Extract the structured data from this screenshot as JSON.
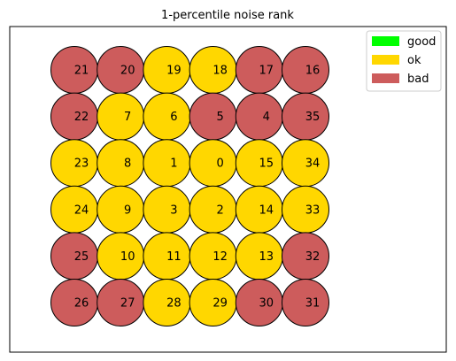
{
  "chart_data": {
    "type": "scatter",
    "title": "1-percentile noise rank",
    "grid": false,
    "axes_visible": false,
    "legend_position": "top-right",
    "colors": {
      "good": "#00ff00",
      "ok": "#ffd700",
      "bad": "#cd5c5c",
      "edge": "#000000"
    },
    "legend": [
      {
        "key": "good",
        "label": "good"
      },
      {
        "key": "ok",
        "label": "ok"
      },
      {
        "key": "bad",
        "label": "bad"
      }
    ],
    "grid_layout": {
      "rows": 6,
      "cols": 6
    },
    "points": [
      {
        "label": "21",
        "row": 0,
        "col": 0,
        "status": "bad"
      },
      {
        "label": "20",
        "row": 0,
        "col": 1,
        "status": "bad"
      },
      {
        "label": "19",
        "row": 0,
        "col": 2,
        "status": "ok"
      },
      {
        "label": "18",
        "row": 0,
        "col": 3,
        "status": "ok"
      },
      {
        "label": "17",
        "row": 0,
        "col": 4,
        "status": "bad"
      },
      {
        "label": "16",
        "row": 0,
        "col": 5,
        "status": "bad"
      },
      {
        "label": "22",
        "row": 1,
        "col": 0,
        "status": "bad"
      },
      {
        "label": "7",
        "row": 1,
        "col": 1,
        "status": "ok"
      },
      {
        "label": "6",
        "row": 1,
        "col": 2,
        "status": "ok"
      },
      {
        "label": "5",
        "row": 1,
        "col": 3,
        "status": "bad"
      },
      {
        "label": "4",
        "row": 1,
        "col": 4,
        "status": "bad"
      },
      {
        "label": "35",
        "row": 1,
        "col": 5,
        "status": "bad"
      },
      {
        "label": "23",
        "row": 2,
        "col": 0,
        "status": "ok"
      },
      {
        "label": "8",
        "row": 2,
        "col": 1,
        "status": "ok"
      },
      {
        "label": "1",
        "row": 2,
        "col": 2,
        "status": "ok"
      },
      {
        "label": "0",
        "row": 2,
        "col": 3,
        "status": "ok"
      },
      {
        "label": "15",
        "row": 2,
        "col": 4,
        "status": "ok"
      },
      {
        "label": "34",
        "row": 2,
        "col": 5,
        "status": "ok"
      },
      {
        "label": "24",
        "row": 3,
        "col": 0,
        "status": "ok"
      },
      {
        "label": "9",
        "row": 3,
        "col": 1,
        "status": "ok"
      },
      {
        "label": "3",
        "row": 3,
        "col": 2,
        "status": "ok"
      },
      {
        "label": "2",
        "row": 3,
        "col": 3,
        "status": "ok"
      },
      {
        "label": "14",
        "row": 3,
        "col": 4,
        "status": "ok"
      },
      {
        "label": "33",
        "row": 3,
        "col": 5,
        "status": "ok"
      },
      {
        "label": "25",
        "row": 4,
        "col": 0,
        "status": "bad"
      },
      {
        "label": "10",
        "row": 4,
        "col": 1,
        "status": "ok"
      },
      {
        "label": "11",
        "row": 4,
        "col": 2,
        "status": "ok"
      },
      {
        "label": "12",
        "row": 4,
        "col": 3,
        "status": "ok"
      },
      {
        "label": "13",
        "row": 4,
        "col": 4,
        "status": "ok"
      },
      {
        "label": "32",
        "row": 4,
        "col": 5,
        "status": "bad"
      },
      {
        "label": "26",
        "row": 5,
        "col": 0,
        "status": "bad"
      },
      {
        "label": "27",
        "row": 5,
        "col": 1,
        "status": "bad"
      },
      {
        "label": "28",
        "row": 5,
        "col": 2,
        "status": "ok"
      },
      {
        "label": "29",
        "row": 5,
        "col": 3,
        "status": "ok"
      },
      {
        "label": "30",
        "row": 5,
        "col": 4,
        "status": "bad"
      },
      {
        "label": "31",
        "row": 5,
        "col": 5,
        "status": "bad"
      }
    ]
  }
}
